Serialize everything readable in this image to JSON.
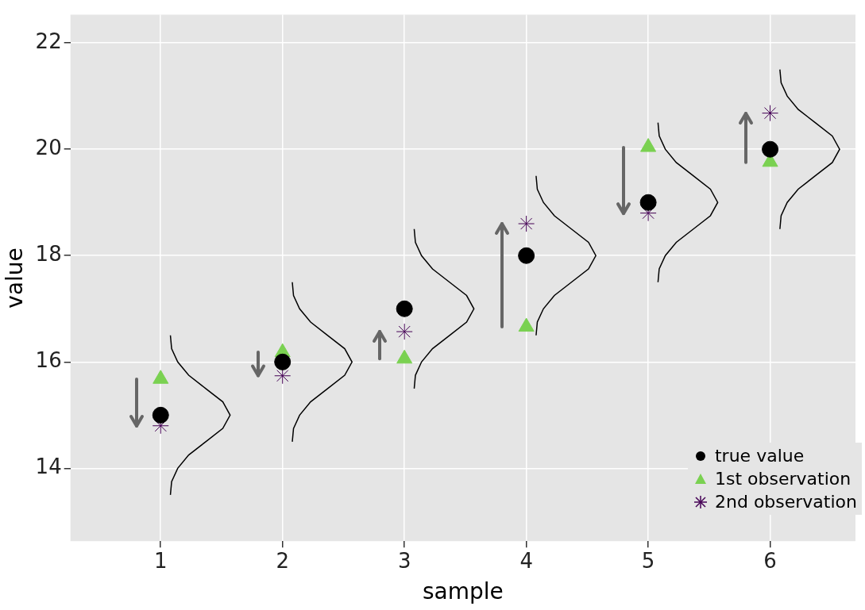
{
  "chart_data": {
    "type": "scatter",
    "xlabel": "sample",
    "ylabel": "value",
    "x": [
      1,
      2,
      3,
      4,
      5,
      6
    ],
    "xlim": [
      0.26,
      6.7
    ],
    "xticks": [
      1,
      2,
      3,
      4,
      5,
      6
    ],
    "ylim": [
      12.63,
      22.53
    ],
    "yticks": [
      14,
      16,
      18,
      20,
      22
    ],
    "grid": true,
    "legend": "bottom right",
    "series": [
      {
        "name": "true value",
        "color": "#000000",
        "marker": "circle",
        "values": [
          15,
          16,
          17,
          18,
          19,
          20
        ]
      },
      {
        "name": "1st observation",
        "color": "#7ad151",
        "marker": "triangle",
        "values": [
          15.68,
          16.18,
          16.06,
          16.66,
          20.04,
          19.76
        ]
      },
      {
        "name": "2nd observation",
        "color": "#440154",
        "marker": "cross",
        "values": [
          14.8,
          15.74,
          16.57,
          18.6,
          18.8,
          20.68
        ]
      },
      {
        "type": "line",
        "color": "#000000",
        "marker": "none",
        "x": [
          1.08,
          1.09,
          1.14,
          1.23,
          1.37,
          1.51,
          1.57,
          1.51,
          1.37,
          1.23,
          1.14,
          1.09,
          1.08
        ],
        "values": [
          13.5,
          13.75,
          14,
          14.25,
          14.5,
          14.75,
          15,
          15.25,
          15.5,
          15.75,
          16,
          16.25,
          16.5
        ]
      },
      {
        "type": "line",
        "color": "#000000",
        "marker": "none",
        "x": [
          2.08,
          2.09,
          2.14,
          2.23,
          2.37,
          2.51,
          2.57,
          2.51,
          2.37,
          2.23,
          2.14,
          2.09,
          2.08
        ],
        "values": [
          14.5,
          14.75,
          15,
          15.25,
          15.5,
          15.75,
          16,
          16.25,
          16.5,
          16.75,
          17,
          17.25,
          17.5
        ]
      },
      {
        "type": "line",
        "color": "#000000",
        "marker": "none",
        "x": [
          3.08,
          3.09,
          3.14,
          3.23,
          3.37,
          3.51,
          3.57,
          3.51,
          3.37,
          3.23,
          3.14,
          3.09,
          3.08
        ],
        "values": [
          15.5,
          15.75,
          16,
          16.25,
          16.5,
          16.75,
          17,
          17.25,
          17.5,
          17.75,
          18,
          18.25,
          18.5
        ]
      },
      {
        "type": "line",
        "color": "#000000",
        "marker": "none",
        "x": [
          4.08,
          4.09,
          4.14,
          4.23,
          4.37,
          4.51,
          4.57,
          4.51,
          4.37,
          4.23,
          4.14,
          4.09,
          4.08
        ],
        "values": [
          16.5,
          16.75,
          17,
          17.25,
          17.5,
          17.75,
          18,
          18.25,
          18.5,
          18.75,
          19,
          19.25,
          19.5
        ]
      },
      {
        "type": "line",
        "color": "#000000",
        "marker": "none",
        "x": [
          5.08,
          5.09,
          5.14,
          5.23,
          5.37,
          5.51,
          5.57,
          5.51,
          5.37,
          5.23,
          5.14,
          5.09,
          5.08
        ],
        "values": [
          17.5,
          17.75,
          18,
          18.25,
          18.5,
          18.75,
          19,
          19.25,
          19.5,
          19.75,
          20,
          20.25,
          20.5
        ]
      },
      {
        "type": "line",
        "color": "#000000",
        "marker": "none",
        "x": [
          6.08,
          6.09,
          6.14,
          6.23,
          6.37,
          6.51,
          6.57,
          6.51,
          6.37,
          6.23,
          6.14,
          6.09,
          6.08
        ],
        "values": [
          18.5,
          18.75,
          19,
          19.25,
          19.5,
          19.75,
          20,
          20.25,
          20.5,
          20.75,
          21,
          21.25,
          21.5
        ]
      }
    ]
  }
}
